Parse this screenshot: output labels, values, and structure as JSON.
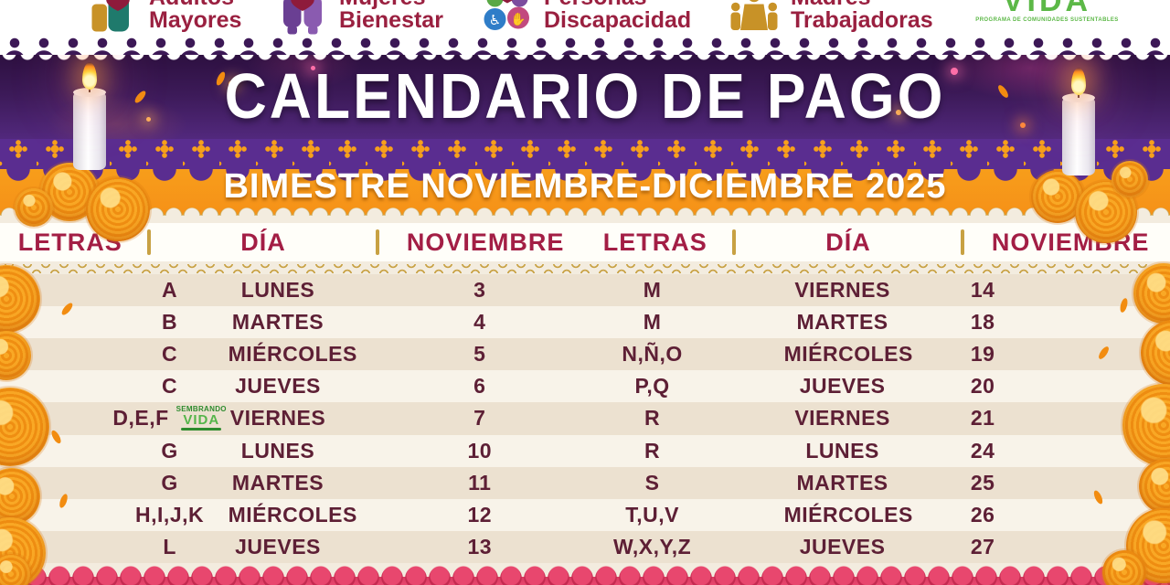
{
  "program_logos": [
    {
      "id": "adultos-mayores",
      "line1": "Adultos",
      "line2": "Mayores"
    },
    {
      "id": "mujeres-bienestar",
      "line1": "Mujeres",
      "line2": "Bienestar"
    },
    {
      "id": "personas-discapacidad",
      "line1": "Personas",
      "line2": "Discapacidad"
    },
    {
      "id": "madres-trabajadoras",
      "line1": "Madres",
      "line2": "Trabajadoras"
    },
    {
      "id": "sembrando-vida",
      "title": "VIDA",
      "tagline": "PROGRAMA DE COMUNIDADES SUSTENTABLES"
    }
  ],
  "banner": {
    "title": "CALENDARIO DE PAGO",
    "subtitle": "BIMESTRE NOVIEMBRE-DICIEMBRE 2025"
  },
  "table": {
    "headers": {
      "letters": "LETRAS",
      "day": "DÍA",
      "month": "NOVIEMBRE"
    },
    "left_rows": [
      {
        "letters": "A",
        "day": "LUNES",
        "date": "3"
      },
      {
        "letters": "B",
        "day": "MARTES",
        "date": "4"
      },
      {
        "letters": "C",
        "day": "MIÉRCOLES",
        "date": "5"
      },
      {
        "letters": "C",
        "day": "JUEVES",
        "date": "6"
      },
      {
        "letters": "D,E,F",
        "day": "VIERNES",
        "date": "7",
        "logo": true
      },
      {
        "letters": "G",
        "day": "LUNES",
        "date": "10"
      },
      {
        "letters": "G",
        "day": "MARTES",
        "date": "11"
      },
      {
        "letters": "H,I,J,K",
        "day": "MIÉRCOLES",
        "date": "12"
      },
      {
        "letters": "L",
        "day": "JUEVES",
        "date": "13"
      }
    ],
    "right_rows": [
      {
        "letters": "M",
        "day": "VIERNES",
        "date": "14"
      },
      {
        "letters": "M",
        "day": "MARTES",
        "date": "18"
      },
      {
        "letters": "N,Ñ,O",
        "day": "MIÉRCOLES",
        "date": "19"
      },
      {
        "letters": "P,Q",
        "day": "JUEVES",
        "date": "20"
      },
      {
        "letters": "R",
        "day": "VIERNES",
        "date": "21"
      },
      {
        "letters": "R",
        "day": "LUNES",
        "date": "24"
      },
      {
        "letters": "S",
        "day": "MARTES",
        "date": "25"
      },
      {
        "letters": "T,U,V",
        "day": "MIÉRCOLES",
        "date": "26"
      },
      {
        "letters": "W,X,Y,Z",
        "day": "JUEVES",
        "date": "27"
      }
    ]
  },
  "row_logo": {
    "line1": "SEMBRANDO",
    "line2": "VIDA"
  },
  "colors": {
    "purple_dark": "#2D1040",
    "purple": "#53297F",
    "lace_purple": "#5A2D90",
    "orange": "#F7A01B",
    "crimson_header": "#A31E45",
    "maroon_text": "#5D1F35",
    "gold": "#C8A143",
    "ribbon_red": "#C42A50",
    "ribbon_pink": "#E8476E",
    "cream": "#F3ECDF",
    "logo_green": "#5CB847",
    "logo_maroon": "#9A2040"
  }
}
